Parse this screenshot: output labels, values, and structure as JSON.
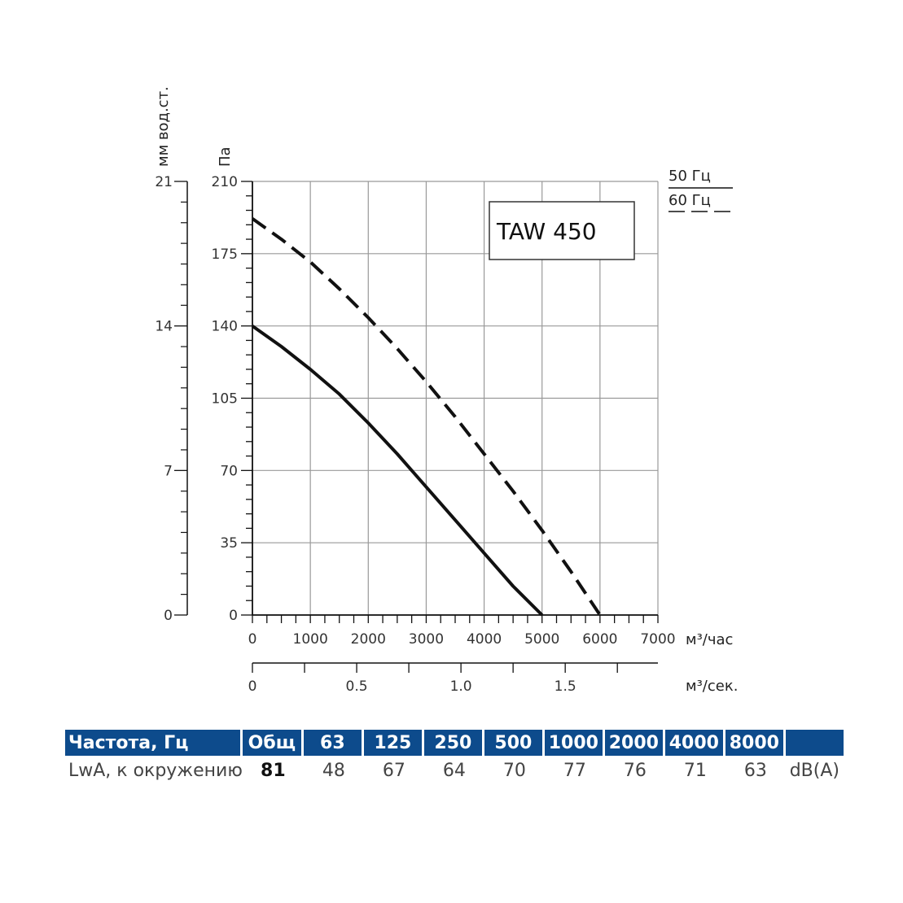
{
  "chart_data": {
    "type": "line",
    "model": "TAW 450",
    "y_left_unit": "мм вод.ст.",
    "y_left_ticks": [
      0,
      7,
      14,
      21
    ],
    "y_unit": "Па",
    "y_ticks": [
      0,
      35,
      70,
      105,
      140,
      175,
      210
    ],
    "ylim": [
      0,
      210
    ],
    "x_unit": "м³/час",
    "x_ticks": [
      0,
      1000,
      2000,
      3000,
      4000,
      5000,
      6000,
      7000
    ],
    "xlim": [
      0,
      7000
    ],
    "x2_unit": "м³/сек.",
    "x2_ticks": [
      "0",
      "0.5",
      "1.0",
      "1.5"
    ],
    "x2_tick_values": [
      0,
      0.5,
      1.0,
      1.5
    ],
    "grid": true,
    "legend": [
      {
        "label": "50 Гц",
        "style": "solid"
      },
      {
        "label": "60 Гц",
        "style": "dashed"
      }
    ],
    "series": [
      {
        "name": "50 Гц",
        "style": "solid",
        "x": [
          0,
          500,
          1000,
          1500,
          2000,
          2500,
          3000,
          3500,
          4000,
          4500,
          5000
        ],
        "y": [
          140,
          130,
          119,
          107,
          93,
          78,
          62,
          46,
          30,
          14,
          0
        ]
      },
      {
        "name": "60 Гц",
        "style": "dashed",
        "x": [
          0,
          500,
          1000,
          1500,
          2000,
          2500,
          3000,
          3500,
          4000,
          4500,
          5000,
          5500,
          6000
        ],
        "y": [
          192,
          182,
          171,
          158,
          144,
          129,
          113,
          96,
          78,
          60,
          41,
          21,
          0
        ]
      }
    ]
  },
  "noise_table": {
    "header": [
      "Частота, Гц",
      "Общ",
      "63",
      "125",
      "250",
      "500",
      "1000",
      "2000",
      "4000",
      "8000",
      ""
    ],
    "row": [
      "LwA, к окружению",
      "81",
      "48",
      "67",
      "64",
      "70",
      "77",
      "76",
      "71",
      "63",
      "dB(A)"
    ]
  },
  "colors": {
    "header_bg": "#0d4b8c",
    "grid": "#999999",
    "curve": "#111111"
  }
}
